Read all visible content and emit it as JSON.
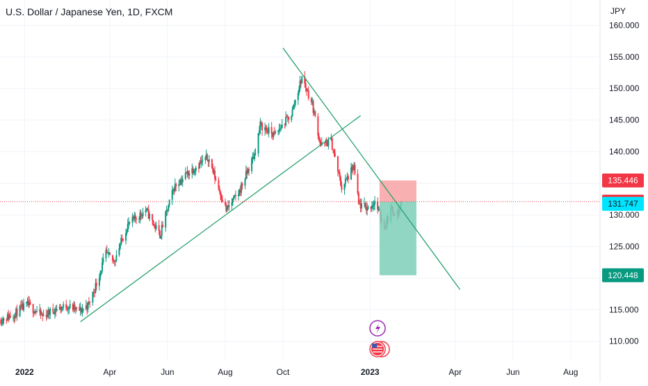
{
  "chart_data": {
    "type": "candlestick",
    "title": "U.S. Dollar / Japanese Yen, 1D, FXCM",
    "currency": "JPY",
    "ylim": [
      107,
      164
    ],
    "y_ticks": [
      "110.000",
      "115.000",
      "120.000",
      "125.000",
      "130.000",
      "135.000",
      "140.000",
      "145.000",
      "150.000",
      "155.000",
      "160.000"
    ],
    "x_labels": [
      {
        "label": "2022",
        "date": "2022-01-01",
        "year": true
      },
      {
        "label": "Apr",
        "date": "2022-04-01",
        "year": false
      },
      {
        "label": "Jun",
        "date": "2022-06-01",
        "year": false
      },
      {
        "label": "Aug",
        "date": "2022-08-01",
        "year": false
      },
      {
        "label": "Oct",
        "date": "2022-10-01",
        "year": false
      },
      {
        "label": "2023",
        "date": "2023-01-01",
        "year": true
      },
      {
        "label": "Apr",
        "date": "2023-04-01",
        "year": false
      },
      {
        "label": "Jun",
        "date": "2023-06-01",
        "year": false
      },
      {
        "label": "Aug",
        "date": "2023-08-01",
        "year": false
      }
    ],
    "x_range": [
      "2021-12-06",
      "2023-09-01"
    ],
    "price_path": [
      [
        "2021-12-06",
        113.4
      ],
      [
        "2021-12-20",
        114.2
      ],
      [
        "2022-01-04",
        115.8
      ],
      [
        "2022-01-20",
        114.0
      ],
      [
        "2022-02-01",
        115.0
      ],
      [
        "2022-02-15",
        115.6
      ],
      [
        "2022-03-01",
        114.8
      ],
      [
        "2022-03-10",
        115.9
      ],
      [
        "2022-03-18",
        119.2
      ],
      [
        "2022-03-28",
        123.9
      ],
      [
        "2022-04-05",
        122.6
      ],
      [
        "2022-04-20",
        128.4
      ],
      [
        "2022-05-09",
        130.8
      ],
      [
        "2022-05-24",
        126.8
      ],
      [
        "2022-06-08",
        134.4
      ],
      [
        "2022-06-22",
        136.6
      ],
      [
        "2022-07-14",
        139.1
      ],
      [
        "2022-08-02",
        130.8
      ],
      [
        "2022-08-15",
        133.4
      ],
      [
        "2022-09-01",
        139.6
      ],
      [
        "2022-09-07",
        144.2
      ],
      [
        "2022-09-22",
        142.6
      ],
      [
        "2022-10-10",
        146.0
      ],
      [
        "2022-10-21",
        151.8
      ],
      [
        "2022-11-01",
        147.5
      ],
      [
        "2022-11-10",
        141.0
      ],
      [
        "2022-11-21",
        141.6
      ],
      [
        "2022-12-02",
        134.3
      ],
      [
        "2022-12-15",
        137.6
      ],
      [
        "2022-12-20",
        131.6
      ],
      [
        "2022-12-30",
        131.0
      ],
      [
        "2023-01-06",
        132.1
      ],
      [
        "2023-01-16",
        128.1
      ],
      [
        "2023-01-23",
        130.8
      ],
      [
        "2023-01-31",
        130.3
      ],
      [
        "2023-02-03",
        132.1
      ]
    ],
    "trendlines": [
      {
        "name": "",
        "color": "#26a16a",
        "points": [
          [
            "2022-03-01",
            113.1
          ],
          [
            "2022-12-22",
            145.7
          ]
        ]
      },
      {
        "name": "",
        "color": "#26a16a",
        "points": [
          [
            "2022-10-01",
            156.4
          ],
          [
            "2023-04-06",
            118.2
          ]
        ]
      }
    ],
    "position": {
      "type": "short",
      "start": "2023-01-11",
      "end": "2023-02-19",
      "entry": 132.105,
      "stop": 135.446,
      "target": 120.448,
      "stop_color": "#f7a9a7",
      "target_color": "#7ecfb9"
    },
    "last_price_line": 132.105,
    "price_labels": [
      {
        "value": 135.446,
        "text": "135.446",
        "bg": "#f23645",
        "fg": "#ffffff"
      },
      {
        "value": 132.105,
        "text": "132.105",
        "bg": "#f23645",
        "fg": "#ffffff"
      },
      {
        "value": 131.747,
        "text": "131.747",
        "bg": "#00e5ff",
        "fg": "#131722"
      },
      {
        "value": 120.448,
        "text": "120.448",
        "bg": "#089981",
        "fg": "#ffffff"
      }
    ],
    "event_icons": [
      {
        "icon": "lightning-event-icon",
        "date": "2023-01-06",
        "color": "#9c27b0"
      },
      {
        "icon": "us-flag-event-icon",
        "date": "2023-01-06",
        "color": "#f23645"
      }
    ],
    "colors": {
      "up": "#089981",
      "down": "#f23645",
      "grid": "#f0f3fa"
    }
  }
}
